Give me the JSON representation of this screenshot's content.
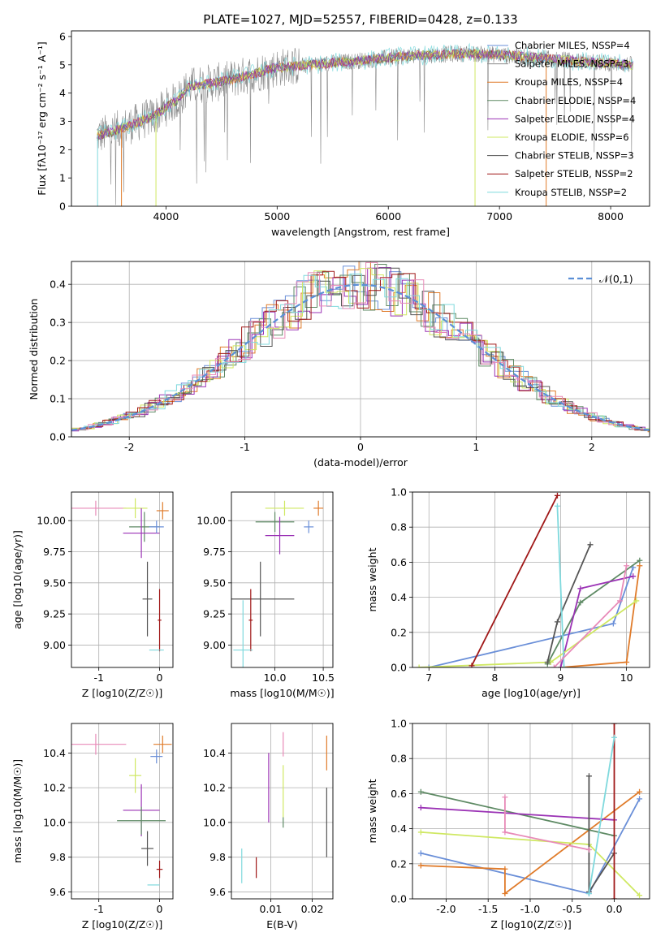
{
  "figure_title": "PLATE=1027, MJD=52557, FIBERID=0428, z=0.133",
  "colors": {
    "Chabrier MILES": "#6a8fd8",
    "Salpeter MILES": "#8a8a8a",
    "Kroupa MILES": "#e07b2a",
    "Chabrier ELODIE": "#5e8a64",
    "Salpeter ELODIE": "#9b33b5",
    "Kroupa ELODIE": "#cfe862",
    "Chabrier STELIB": "#555555",
    "Salpeter STELIB": "#a01818",
    "Kroupa STELIB": "#7fd9dd",
    "Pink": "#e88ab8",
    "Normal": "#5b8fd6"
  },
  "chart_data": [
    {
      "type": "line",
      "title": "PLATE=1027, MJD=52557, FIBERID=0428, z=0.133",
      "xlabel": "wavelength [Angstrom, rest frame]",
      "ylabel": "Flux [fλ10⁻¹⁷ erg cm⁻² s⁻¹ A⁻¹]",
      "xlim": [
        3150,
        8350
      ],
      "ylim": [
        0,
        6.2
      ],
      "xticks": [
        4000,
        5000,
        6000,
        7000,
        8000
      ],
      "yticks": [
        0,
        1,
        2,
        3,
        4,
        5,
        6
      ],
      "legend_position": "right",
      "legend": [
        "Chabrier MILES, NSSP=4",
        "Salpeter MILES, NSSP=3",
        "Kroupa MILES, NSSP=4",
        "Chabrier ELODIE, NSSP=4",
        "Salpeter ELODIE, NSSP=4",
        "Kroupa ELODIE, NSSP=6",
        "Chabrier STELIB, NSSP=3",
        "Salpeter STELIB, NSSP=2",
        "Kroupa STELIB, NSSP=2"
      ],
      "continuum": [
        [
          3380,
          2.5
        ],
        [
          3500,
          2.6
        ],
        [
          3700,
          2.9
        ],
        [
          3900,
          3.2
        ],
        [
          4000,
          3.5
        ],
        [
          4100,
          3.75
        ],
        [
          4200,
          4.2
        ],
        [
          4300,
          4.3
        ],
        [
          4500,
          4.4
        ],
        [
          4800,
          4.7
        ],
        [
          5000,
          4.9
        ],
        [
          5300,
          5.0
        ],
        [
          5600,
          5.1
        ],
        [
          5900,
          5.2
        ],
        [
          6100,
          5.3
        ],
        [
          6400,
          5.35
        ],
        [
          6700,
          5.4
        ],
        [
          7000,
          5.35
        ],
        [
          7200,
          5.3
        ],
        [
          7500,
          5.2
        ],
        [
          7800,
          5.1
        ],
        [
          8000,
          5.05
        ],
        [
          8200,
          5.0
        ]
      ]
    },
    {
      "type": "bar",
      "xlabel": "(data-model)/error",
      "ylabel": "Normed distribution",
      "xlim": [
        -2.5,
        2.5
      ],
      "ylim": [
        0,
        0.46
      ],
      "xticks": [
        -2,
        -1,
        0,
        1,
        2
      ],
      "yticks": [
        0.0,
        0.1,
        0.2,
        0.3,
        0.4
      ],
      "legend_position": "top-right",
      "legend": [
        "𝒩(0,1)"
      ],
      "grid": true
    },
    {
      "type": "scatter",
      "xlabel": "Z [log10(Z/Z☉)]",
      "ylabel": "age  [log10(age/yr)]",
      "xlim": [
        -1.45,
        0.22
      ],
      "ylim": [
        8.82,
        10.23
      ],
      "xticks": [
        -1,
        0
      ],
      "yticks": [
        9.0,
        9.25,
        9.5,
        9.75,
        10.0
      ],
      "points": [
        {
          "x": -1.05,
          "y": 10.1,
          "xerr": 0.5,
          "yerr": 0.06,
          "c": "Pink"
        },
        {
          "x": -0.25,
          "y": 9.95,
          "xerr": 0.25,
          "yerr": 0.12,
          "c": "Chabrier ELODIE"
        },
        {
          "x": -0.4,
          "y": 10.1,
          "xerr": 0.2,
          "yerr": 0.08,
          "c": "Kroupa ELODIE"
        },
        {
          "x": -0.3,
          "y": 9.9,
          "xerr": 0.3,
          "yerr": 0.2,
          "c": "Salpeter ELODIE"
        },
        {
          "x": 0.05,
          "y": 10.08,
          "xerr": 0.1,
          "yerr": 0.07,
          "c": "Kroupa MILES"
        },
        {
          "x": -0.05,
          "y": 9.95,
          "xerr": 0.12,
          "yerr": 0.05,
          "c": "Chabrier MILES"
        },
        {
          "x": -0.2,
          "y": 9.37,
          "xerr": 0.08,
          "yerr": 0.3,
          "c": "Chabrier STELIB"
        },
        {
          "x": 0.0,
          "y": 9.2,
          "xerr": 0.03,
          "yerr": 0.25,
          "c": "Salpeter STELIB"
        },
        {
          "x": -0.05,
          "y": 8.96,
          "xerr": 0.12,
          "yerr": 0.0,
          "c": "Kroupa STELIB"
        }
      ]
    },
    {
      "type": "scatter",
      "xlabel": "mass [log10(M/M☉)]",
      "ylabel": "",
      "xlim": [
        9.55,
        10.6
      ],
      "ylim": [
        8.82,
        10.23
      ],
      "xticks": [
        10.0,
        10.5
      ],
      "yticks": [
        9.0,
        9.25,
        9.5,
        9.75,
        10.0
      ],
      "points": [
        {
          "x": 10.45,
          "y": 10.1,
          "xerr": 0.05,
          "yerr": 0.06,
          "c": "Kroupa MILES"
        },
        {
          "x": 10.35,
          "y": 9.95,
          "xerr": 0.05,
          "yerr": 0.05,
          "c": "Chabrier MILES"
        },
        {
          "x": 10.0,
          "y": 9.99,
          "xerr": 0.2,
          "yerr": 0.08,
          "c": "Chabrier ELODIE"
        },
        {
          "x": 10.1,
          "y": 10.1,
          "xerr": 0.2,
          "yerr": 0.06,
          "c": "Kroupa ELODIE"
        },
        {
          "x": 10.05,
          "y": 9.88,
          "xerr": 0.15,
          "yerr": 0.15,
          "c": "Salpeter ELODIE"
        },
        {
          "x": 9.85,
          "y": 9.37,
          "xerr": 0.35,
          "yerr": 0.3,
          "c": "Chabrier STELIB"
        },
        {
          "x": 9.75,
          "y": 9.2,
          "xerr": 0.02,
          "yerr": 0.25,
          "c": "Salpeter STELIB"
        },
        {
          "x": 9.67,
          "y": 8.96,
          "xerr": 0.1,
          "yerr": 0.4,
          "c": "Kroupa STELIB"
        }
      ]
    },
    {
      "type": "line",
      "xlabel": "age  [log10(age/yr)]",
      "ylabel": "mass weight",
      "xlim": [
        6.75,
        10.35
      ],
      "ylim": [
        0,
        1.0
      ],
      "xticks": [
        7,
        8,
        9,
        10
      ],
      "yticks": [
        0.0,
        0.2,
        0.4,
        0.6,
        0.8,
        1.0
      ],
      "series": [
        {
          "c": "Chabrier MILES",
          "pts": [
            [
              7.0,
              0.0
            ],
            [
              9.8,
              0.25
            ],
            [
              10.1,
              0.57
            ]
          ]
        },
        {
          "c": "Kroupa MILES",
          "pts": [
            [
              9.0,
              0.0
            ],
            [
              10.0,
              0.03
            ],
            [
              10.2,
              0.58
            ]
          ]
        },
        {
          "c": "Chabrier ELODIE",
          "pts": [
            [
              8.8,
              0.02
            ],
            [
              9.3,
              0.37
            ],
            [
              10.2,
              0.61
            ]
          ]
        },
        {
          "c": "Salpeter ELODIE",
          "pts": [
            [
              9.0,
              0.0
            ],
            [
              9.3,
              0.45
            ],
            [
              10.1,
              0.52
            ]
          ]
        },
        {
          "c": "Kroupa ELODIE",
          "pts": [
            [
              6.85,
              0.0
            ],
            [
              8.85,
              0.03
            ],
            [
              10.15,
              0.38
            ]
          ]
        },
        {
          "c": "Chabrier STELIB",
          "pts": [
            [
              8.8,
              0.03
            ],
            [
              8.95,
              0.26
            ],
            [
              9.45,
              0.7
            ]
          ]
        },
        {
          "c": "Salpeter STELIB",
          "pts": [
            [
              7.65,
              0.01
            ],
            [
              8.95,
              0.98
            ]
          ]
        },
        {
          "c": "Kroupa STELIB",
          "pts": [
            [
              8.95,
              0.92
            ],
            [
              9.05,
              0.0
            ]
          ]
        },
        {
          "c": "Pink",
          "pts": [
            [
              8.9,
              0.0
            ],
            [
              9.9,
              0.38
            ],
            [
              10.0,
              0.58
            ]
          ]
        }
      ]
    },
    {
      "type": "scatter",
      "xlabel": "Z [log10(Z/Z☉)]",
      "ylabel": "mass [log10(M/M☉)]",
      "xlim": [
        -1.45,
        0.22
      ],
      "ylim": [
        9.56,
        10.57
      ],
      "xticks": [
        -1,
        0
      ],
      "yticks": [
        9.6,
        9.8,
        10.0,
        10.2,
        10.4
      ],
      "points": [
        {
          "x": -1.05,
          "y": 10.45,
          "xerr": 0.5,
          "yerr": 0.06,
          "c": "Pink"
        },
        {
          "x": 0.05,
          "y": 10.45,
          "xerr": 0.15,
          "yerr": 0.05,
          "c": "Kroupa MILES"
        },
        {
          "x": -0.05,
          "y": 10.38,
          "xerr": 0.1,
          "yerr": 0.04,
          "c": "Chabrier MILES"
        },
        {
          "x": -0.4,
          "y": 10.27,
          "xerr": 0.1,
          "yerr": 0.1,
          "c": "Kroupa ELODIE"
        },
        {
          "x": -0.3,
          "y": 10.07,
          "xerr": 0.3,
          "yerr": 0.15,
          "c": "Salpeter ELODIE"
        },
        {
          "x": -0.3,
          "y": 10.01,
          "xerr": 0.4,
          "yerr": 0.08,
          "c": "Chabrier ELODIE"
        },
        {
          "x": -0.2,
          "y": 9.85,
          "xerr": 0.1,
          "yerr": 0.1,
          "c": "Chabrier STELIB"
        },
        {
          "x": 0.0,
          "y": 9.73,
          "xerr": 0.05,
          "yerr": 0.05,
          "c": "Salpeter STELIB"
        },
        {
          "x": -0.1,
          "y": 9.64,
          "xerr": 0.1,
          "yerr": 0.0,
          "c": "Kroupa STELIB"
        }
      ]
    },
    {
      "type": "scatter",
      "xlabel": "E(B-V)",
      "ylabel": "",
      "xlim": [
        0.0005,
        0.025
      ],
      "ylim": [
        9.56,
        10.57
      ],
      "xticks": [
        0.01,
        0.02
      ],
      "yticks": [
        9.6,
        9.8,
        10.0,
        10.2,
        10.4
      ],
      "points": [
        {
          "x": 0.013,
          "y": 10.45,
          "yerr": 0.07,
          "c": "Pink"
        },
        {
          "x": 0.0235,
          "y": 10.4,
          "yerr": 0.1,
          "c": "Kroupa MILES"
        },
        {
          "x": 0.0235,
          "y": 10.0,
          "yerr": 0.2,
          "c": "Chabrier STELIB"
        },
        {
          "x": 0.0095,
          "y": 10.2,
          "yerr": 0.2,
          "c": "Salpeter ELODIE"
        },
        {
          "x": 0.013,
          "y": 10.18,
          "yerr": 0.15,
          "c": "Kroupa ELODIE"
        },
        {
          "x": 0.013,
          "y": 10.0,
          "yerr": 0.03,
          "c": "Chabrier ELODIE"
        },
        {
          "x": 0.0065,
          "y": 9.74,
          "yerr": 0.06,
          "c": "Salpeter STELIB"
        },
        {
          "x": 0.003,
          "y": 9.75,
          "yerr": 0.1,
          "c": "Kroupa STELIB"
        }
      ]
    },
    {
      "type": "line",
      "xlabel": "Z [log10(Z/Z☉)]",
      "ylabel": "mass weight",
      "xlim": [
        -2.4,
        0.42
      ],
      "ylim": [
        0,
        1.0
      ],
      "xticks": [
        -2.0,
        -1.5,
        -1.0,
        -0.5,
        0.0
      ],
      "yticks": [
        0.0,
        0.2,
        0.4,
        0.6,
        0.8,
        1.0
      ],
      "series": [
        {
          "c": "Chabrier MILES",
          "pts": [
            [
              -2.3,
              0.26
            ],
            [
              -0.3,
              0.03
            ],
            [
              0.3,
              0.57
            ]
          ]
        },
        {
          "c": "Kroupa MILES",
          "pts": [
            [
              -2.3,
              0.19
            ],
            [
              -1.3,
              0.17
            ],
            [
              -1.3,
              0.03
            ],
            [
              0.3,
              0.61
            ]
          ]
        },
        {
          "c": "Chabrier ELODIE",
          "pts": [
            [
              -2.3,
              0.61
            ],
            [
              0.0,
              0.36
            ]
          ]
        },
        {
          "c": "Salpeter ELODIE",
          "pts": [
            [
              -2.3,
              0.52
            ],
            [
              0.0,
              0.45
            ]
          ]
        },
        {
          "c": "Kroupa ELODIE",
          "pts": [
            [
              -2.3,
              0.38
            ],
            [
              -0.3,
              0.31
            ],
            [
              0.3,
              0.02
            ]
          ]
        },
        {
          "c": "Chabrier STELIB",
          "pts": [
            [
              -0.3,
              0.7
            ],
            [
              -0.3,
              0.04
            ],
            [
              0.0,
              0.26
            ]
          ]
        },
        {
          "c": "Salpeter STELIB",
          "pts": [
            [
              0.0,
              1.0
            ],
            [
              0.0,
              0.0
            ]
          ]
        },
        {
          "c": "Kroupa STELIB",
          "pts": [
            [
              0.0,
              0.92
            ],
            [
              -0.3,
              0.03
            ]
          ]
        },
        {
          "c": "Pink",
          "pts": [
            [
              -1.3,
              0.58
            ],
            [
              -1.3,
              0.38
            ],
            [
              -0.3,
              0.28
            ]
          ]
        }
      ]
    }
  ]
}
